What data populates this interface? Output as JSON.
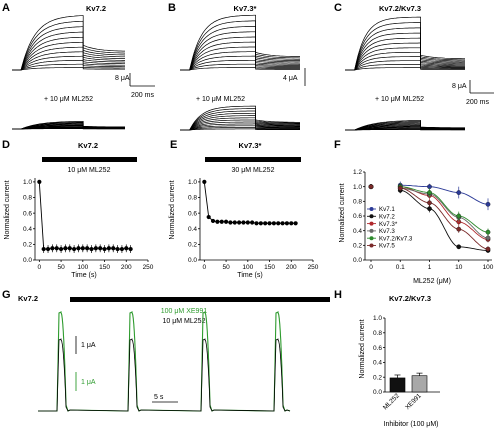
{
  "panels": {
    "A": {
      "label": "A",
      "title": "Kv7.2",
      "drug": "+ 10 μM ML252",
      "scale_current": "8 μA",
      "scale_time": "200 ms"
    },
    "B": {
      "label": "B",
      "title": "Kv7.3*",
      "drug": "+ 10 μM ML252",
      "scale_current": "4 μA"
    },
    "C": {
      "label": "C",
      "title": "Kv7.2/Kv7.3",
      "drug": "+ 10 μM ML252",
      "scale_current": "8 μA",
      "scale_time": "200 ms"
    },
    "D": {
      "label": "D",
      "title": "Kv7.2",
      "bar_label": "10 μM ML252",
      "xlabel": "Time (s)",
      "ylabel": "Normalized current"
    },
    "E": {
      "label": "E",
      "title": "Kv7.3*",
      "bar_label": "30 μM ML252",
      "xlabel": "Time (s)",
      "ylabel": "Normalized current"
    },
    "F": {
      "label": "F",
      "xlabel": "ML252 (μM)",
      "ylabel": "Normalized current"
    },
    "G": {
      "label": "G",
      "title": "Kv7.2",
      "green_label": "100 μM XE991",
      "black_label": "10 μM ML252",
      "scale_black": "1 μA",
      "scale_green": "1 μA",
      "scale_time": "5 s"
    },
    "H": {
      "label": "H",
      "title": "Kv7.2/Kv7.3",
      "xlabel": "Inhibitor (100 μM)",
      "ylabel": "Normalized current"
    }
  },
  "chart_data": [
    {
      "panel": "D",
      "type": "scatter",
      "title": "Kv7.2",
      "xlabel": "Time (s)",
      "ylabel": "Normalized current",
      "xlim": [
        -10,
        250
      ],
      "ylim": [
        0,
        1.05
      ],
      "xticks": [
        0,
        50,
        100,
        150,
        200,
        250
      ],
      "yticks": [
        0.0,
        0.2,
        0.4,
        0.6,
        0.8,
        1.0
      ],
      "x": [
        0,
        10,
        20,
        30,
        40,
        50,
        60,
        70,
        80,
        90,
        100,
        110,
        120,
        130,
        140,
        150,
        160,
        170,
        180,
        190,
        200,
        210
      ],
      "y": [
        1.0,
        0.14,
        0.14,
        0.15,
        0.15,
        0.14,
        0.15,
        0.15,
        0.14,
        0.15,
        0.15,
        0.15,
        0.14,
        0.15,
        0.15,
        0.14,
        0.15,
        0.15,
        0.14,
        0.14,
        0.15,
        0.14
      ],
      "err": [
        0,
        0.05,
        0.05,
        0.05,
        0.05,
        0.05,
        0.05,
        0.05,
        0.05,
        0.05,
        0.05,
        0.05,
        0.05,
        0.05,
        0.05,
        0.05,
        0.05,
        0.05,
        0.05,
        0.05,
        0.05,
        0.05
      ],
      "drug_interval": [
        5,
        215
      ]
    },
    {
      "panel": "E",
      "type": "scatter",
      "title": "Kv7.3*",
      "xlabel": "Time (s)",
      "ylabel": "Normalized current",
      "xlim": [
        -10,
        250
      ],
      "ylim": [
        0,
        1.05
      ],
      "xticks": [
        0,
        50,
        100,
        150,
        200,
        250
      ],
      "yticks": [
        0.0,
        0.2,
        0.4,
        0.6,
        0.8,
        1.0
      ],
      "x": [
        0,
        10,
        20,
        30,
        40,
        50,
        60,
        70,
        80,
        90,
        100,
        110,
        120,
        130,
        140,
        150,
        160,
        170,
        180,
        190,
        200,
        210
      ],
      "y": [
        1.0,
        0.55,
        0.5,
        0.49,
        0.49,
        0.49,
        0.48,
        0.48,
        0.48,
        0.48,
        0.48,
        0.48,
        0.47,
        0.47,
        0.47,
        0.47,
        0.47,
        0.47,
        0.47,
        0.47,
        0.47,
        0.47
      ],
      "drug_interval": [
        5,
        215
      ]
    },
    {
      "panel": "F",
      "type": "line",
      "xlabel": "ML252 (μM)",
      "ylabel": "Normalized current",
      "xscale": "log",
      "xticks": [
        0,
        0.1,
        1,
        10,
        100
      ],
      "ylim": [
        0,
        1.2
      ],
      "yticks": [
        0.0,
        0.2,
        0.4,
        0.6,
        0.8,
        1.0,
        1.2
      ],
      "legend_position": "left",
      "series": [
        {
          "name": "Kv7.1",
          "color": "#2b3a97",
          "x": [
            0.1,
            1,
            10,
            100
          ],
          "y": [
            1.02,
            1.0,
            0.92,
            0.76
          ],
          "err": [
            0.05,
            0.04,
            0.08,
            0.08
          ]
        },
        {
          "name": "Kv7.2",
          "color": "#111111",
          "x": [
            0.1,
            1,
            10,
            100
          ],
          "y": [
            0.95,
            0.7,
            0.18,
            0.13
          ],
          "err": [
            0.04,
            0.05,
            0.03,
            0.03
          ]
        },
        {
          "name": "Kv7.3*",
          "color": "#b0282c",
          "x": [
            0.1,
            1,
            10,
            100
          ],
          "y": [
            1.0,
            0.88,
            0.52,
            0.28
          ],
          "err": [
            0.04,
            0.05,
            0.05,
            0.04
          ]
        },
        {
          "name": "Kv7.3",
          "color": "#6a6a6a",
          "x": [
            0.1,
            1,
            10,
            100
          ],
          "y": [
            0.98,
            0.9,
            0.58,
            0.3
          ],
          "err": [
            0.04,
            0.05,
            0.06,
            0.05
          ]
        },
        {
          "name": "Kv7.2/Kv7.3",
          "color": "#2e8b2e",
          "x": [
            0.1,
            1,
            10,
            100
          ],
          "y": [
            1.0,
            0.92,
            0.6,
            0.38
          ],
          "err": [
            0.05,
            0.06,
            0.06,
            0.05
          ]
        },
        {
          "name": "Kv7.5",
          "color": "#7a2a2a",
          "x": [
            0.1,
            1,
            10,
            100
          ],
          "y": [
            0.98,
            0.78,
            0.42,
            0.15
          ],
          "err": [
            0.04,
            0.05,
            0.05,
            0.03
          ]
        }
      ]
    },
    {
      "panel": "H",
      "type": "bar",
      "title": "Kv7.2/Kv7.3",
      "xlabel": "Inhibitor (100 μM)",
      "ylabel": "Normalized current",
      "categories": [
        "ML252",
        "XE991"
      ],
      "values": [
        0.19,
        0.22
      ],
      "err": [
        0.04,
        0.035
      ],
      "colors": [
        "#111111",
        "#a8a8a8"
      ],
      "ylim": [
        0,
        1.0
      ],
      "yticks": [
        0.0,
        0.2,
        0.4,
        0.6,
        0.8,
        1.0
      ]
    }
  ]
}
